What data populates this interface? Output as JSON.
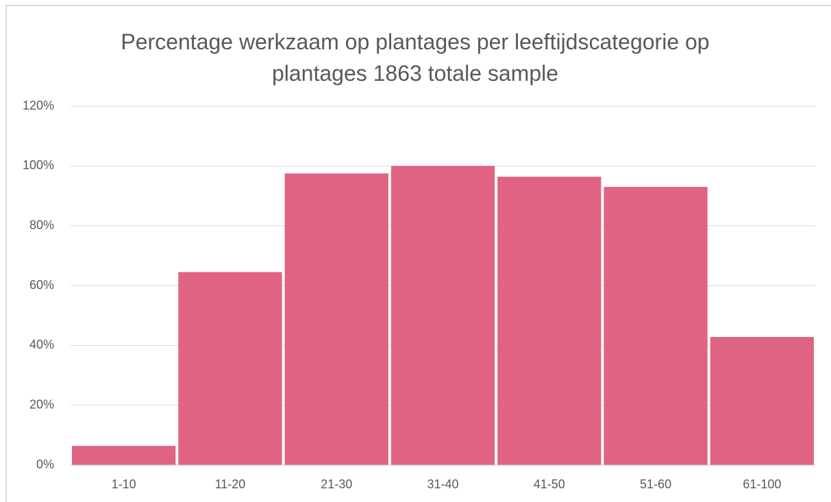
{
  "chart_data": {
    "type": "bar",
    "title": "Percentage werkzaam op plantages per leeftijdscategorie op plantages 1863 totale sample",
    "categories": [
      "1-10",
      "11-20",
      "21-30",
      "31-40",
      "41-50",
      "51-60",
      "61-100"
    ],
    "values": [
      6.4,
      64.5,
      97.5,
      100,
      96.4,
      93,
      42.8
    ],
    "color": "#e06383",
    "ylim": [
      0,
      120
    ],
    "yticks": [
      {
        "value": 0,
        "label": "0%"
      },
      {
        "value": 20,
        "label": "20%"
      },
      {
        "value": 40,
        "label": "40%"
      },
      {
        "value": 60,
        "label": "60%"
      },
      {
        "value": 80,
        "label": "80%"
      },
      {
        "value": 100,
        "label": "100%"
      },
      {
        "value": 120,
        "label": "120%"
      }
    ],
    "grid": true
  }
}
